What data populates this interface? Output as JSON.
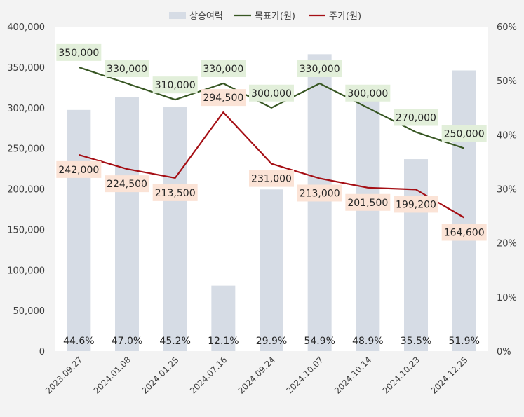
{
  "chart_data": {
    "type": "bar+line",
    "categories": [
      "2023.09.27",
      "2024.01.08",
      "2024.01.25",
      "2024.07.16",
      "2024.09.24",
      "2024.10.07",
      "2024.10.14",
      "2024.10.23",
      "2024.12.25"
    ],
    "series": [
      {
        "name": "상승여력",
        "type": "bar",
        "axis": "right",
        "values": [
          44.6,
          47.0,
          45.2,
          12.1,
          29.9,
          54.9,
          48.9,
          35.5,
          51.9
        ],
        "labels": [
          "44.6%",
          "47.0%",
          "45.2%",
          "12.1%",
          "29.9%",
          "54.9%",
          "48.9%",
          "35.5%",
          "51.9%"
        ],
        "color": "#d6dce5"
      },
      {
        "name": "목표가(원)",
        "type": "line",
        "axis": "left",
        "values": [
          350000,
          330000,
          310000,
          330000,
          300000,
          330000,
          300000,
          270000,
          250000
        ],
        "labels": [
          "350,000",
          "330,000",
          "310,000",
          "330,000",
          "300,000",
          "330,000",
          "300,000",
          "270,000",
          "250,000"
        ],
        "color": "#375623",
        "label_bg": "#e2efda"
      },
      {
        "name": "주가(원)",
        "type": "line",
        "axis": "left",
        "values": [
          242000,
          224500,
          213500,
          294500,
          231000,
          213000,
          201500,
          199200,
          164600
        ],
        "labels": [
          "242,000",
          "224,500",
          "213,500",
          "294,500",
          "231,000",
          "213,000",
          "201,500",
          "199,200",
          "164,600"
        ],
        "color": "#a50f15",
        "label_bg": "#fbe3d6"
      }
    ],
    "y_left": {
      "range": [
        0,
        400000
      ],
      "ticks": [
        "0",
        "50,000",
        "100,000",
        "150,000",
        "200,000",
        "250,000",
        "300,000",
        "350,000",
        "400,000"
      ]
    },
    "y_right": {
      "range": [
        0,
        60
      ],
      "ticks": [
        "0%",
        "10%",
        "20%",
        "30%",
        "40%",
        "50%",
        "60%"
      ]
    },
    "legend_position": "top",
    "grid": false
  }
}
